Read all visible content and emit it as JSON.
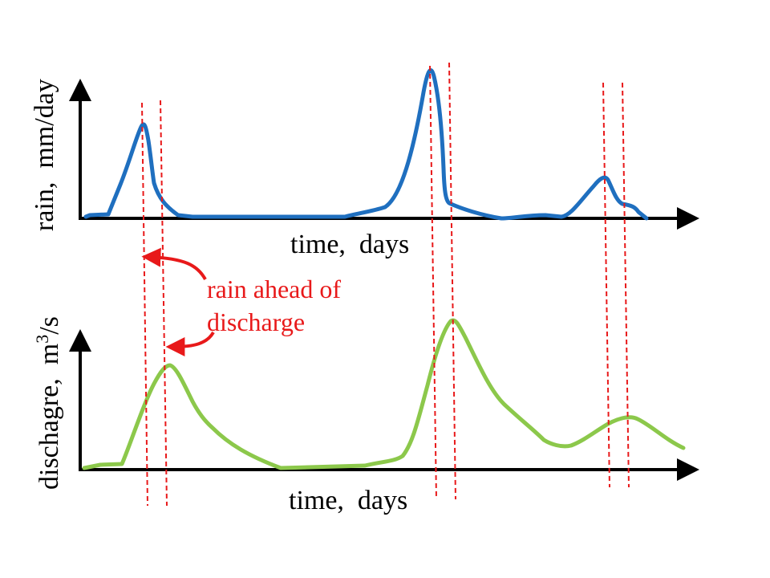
{
  "top_chart": {
    "ylabel": "rain,  mm/day",
    "xlabel": "time,  days",
    "line_color": "#1f6fbf"
  },
  "bottom_chart": {
    "ylabel_main": "dischagre,  m",
    "ylabel_sup": "3",
    "ylabel_tail": "/s",
    "xlabel": "time,  days",
    "line_color": "#8cc84b"
  },
  "annotation": {
    "line1": "rain ahead of",
    "line2": "discharge",
    "color": "#e8191a"
  },
  "guide_color": "#e8191a",
  "axis_color": "#000000"
}
